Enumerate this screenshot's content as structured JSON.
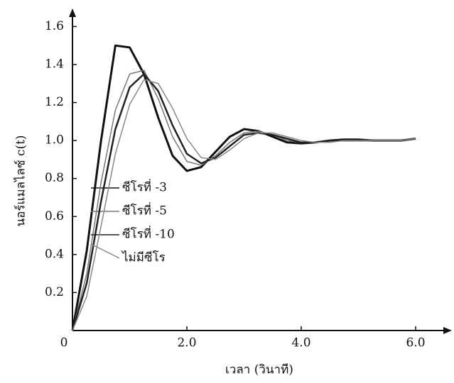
{
  "chart_data": {
    "type": "line",
    "y_label": "นอร์แมลไลซ์ c(t)",
    "x_label": "เวลา (วินาที)",
    "x": [
      0,
      0.25,
      0.5,
      0.75,
      1.0,
      1.25,
      1.5,
      1.75,
      2.0,
      2.25,
      2.5,
      2.75,
      3.0,
      3.25,
      3.5,
      3.75,
      4.0,
      4.25,
      4.5,
      4.75,
      5.0,
      5.25,
      5.5,
      5.75,
      6.0
    ],
    "series": [
      {
        "name": "ซีโรที่ -3",
        "color": "#111111",
        "values": [
          0,
          0.42,
          1.0,
          1.5,
          1.49,
          1.35,
          1.12,
          0.92,
          0.84,
          0.86,
          0.94,
          1.02,
          1.06,
          1.05,
          1.02,
          0.99,
          0.985,
          0.99,
          1.0,
          1.005,
          1.005,
          1.0,
          1.0,
          1.0,
          1.01
        ]
      },
      {
        "name": "ซีโรที่ -5",
        "color": "#777777",
        "values": [
          0,
          0.3,
          0.78,
          1.16,
          1.35,
          1.37,
          1.22,
          1.02,
          0.89,
          0.87,
          0.92,
          0.99,
          1.04,
          1.05,
          1.03,
          1.0,
          0.99,
          0.99,
          1.0,
          1.0,
          1.0,
          1.0,
          1.0,
          1.0,
          1.01
        ]
      },
      {
        "name": "ซีโรที่ -10",
        "color": "#222222",
        "values": [
          0,
          0.25,
          0.68,
          1.06,
          1.28,
          1.35,
          1.26,
          1.08,
          0.93,
          0.88,
          0.91,
          0.97,
          1.03,
          1.04,
          1.03,
          1.01,
          0.99,
          0.99,
          1.0,
          1.0,
          1.0,
          1.0,
          1.0,
          1.0,
          1.01
        ]
      },
      {
        "name": "ไม่มีซีโร",
        "color": "#888888",
        "values": [
          0,
          0.18,
          0.55,
          0.93,
          1.19,
          1.32,
          1.3,
          1.17,
          1.01,
          0.91,
          0.9,
          0.95,
          1.01,
          1.04,
          1.04,
          1.02,
          1.0,
          0.99,
          0.99,
          1.0,
          1.0,
          1.0,
          1.0,
          1.0,
          1.01
        ]
      }
    ],
    "xlim": [
      0,
      6.5
    ],
    "ylim": [
      0,
      1.65
    ],
    "xticks": [
      0,
      {
        "value": 2,
        "label": "2.0"
      },
      {
        "value": 4,
        "label": "4.0"
      },
      {
        "value": 6,
        "label": "6.0"
      }
    ],
    "yticks": [
      0.2,
      0.4,
      0.6,
      0.8,
      {
        "value": 1,
        "label": "1.0"
      },
      1.2,
      1.4,
      1.6
    ]
  }
}
